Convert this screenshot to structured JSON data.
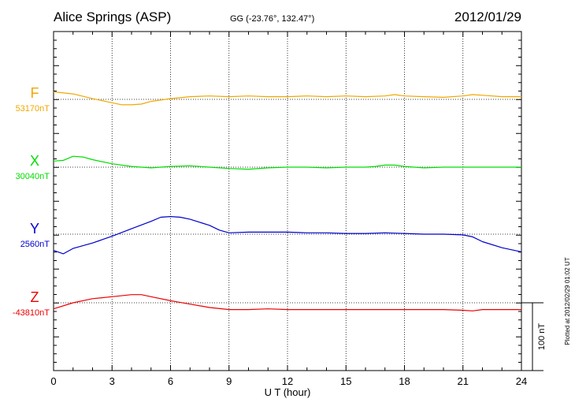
{
  "header": {
    "station": "Alice Springs (ASP)",
    "coords": "GG (-23.76°, 132.47°)",
    "date": "2012/01/29"
  },
  "footer": {
    "plotted": "Plotted at 2012/02/29 01:02 UT"
  },
  "chart_data": {
    "type": "line",
    "xlabel": "U T (hour)",
    "xlim": [
      0,
      24
    ],
    "xticks": [
      "0",
      "3",
      "6",
      "9",
      "12",
      "15",
      "18",
      "21",
      "24"
    ],
    "grid": true,
    "units": "nT",
    "scale_bar": {
      "value": 100,
      "label": "100 nT"
    },
    "series": [
      {
        "name": "F",
        "baseline_label": "53170nT",
        "baseline": 53170,
        "color": "#f0a800",
        "x": [
          0,
          1,
          2,
          3,
          3.5,
          4,
          4.5,
          5,
          6,
          7,
          8,
          9,
          10,
          11,
          12,
          13,
          14,
          15,
          16,
          17,
          17.5,
          18,
          19,
          20,
          21,
          21.5,
          22,
          23,
          24
        ],
        "y": [
          53181,
          53178,
          53171,
          53165,
          53162,
          53162,
          53163,
          53167,
          53171,
          53174,
          53175,
          53174,
          53175,
          53174,
          53174,
          53175,
          53174,
          53175,
          53174,
          53175,
          53177,
          53175,
          53174,
          53173,
          53175,
          53177,
          53176,
          53174,
          53174
        ]
      },
      {
        "name": "X",
        "baseline_label": "30040nT",
        "baseline": 30040,
        "color": "#00dd00",
        "x": [
          0,
          0.5,
          1,
          1.5,
          2,
          3,
          4,
          5,
          6,
          7,
          8,
          9,
          10,
          11,
          12,
          13,
          14,
          15,
          16,
          16.5,
          17,
          17.5,
          18,
          19,
          20,
          21,
          22,
          23,
          24
        ],
        "y": [
          30049,
          30050,
          30056,
          30055,
          30051,
          30045,
          30041,
          30039,
          30041,
          30042,
          30040,
          30038,
          30037,
          30039,
          30040,
          30040,
          30039,
          30040,
          30040,
          30041,
          30043,
          30043,
          30041,
          30039,
          30040,
          30040,
          30040,
          30040,
          30040
        ]
      },
      {
        "name": "Y",
        "baseline_label": "2560nT",
        "baseline": 2560,
        "color": "#0000cc",
        "x": [
          0,
          0.5,
          1,
          2,
          3,
          4,
          5,
          5.5,
          6,
          6.5,
          7,
          8,
          8.5,
          9,
          10,
          11,
          12,
          13,
          14,
          15,
          16,
          17,
          18,
          19,
          20,
          21,
          21.5,
          22,
          23,
          24
        ],
        "y": [
          2536,
          2531,
          2539,
          2547,
          2557,
          2568,
          2579,
          2585,
          2586,
          2585,
          2582,
          2573,
          2566,
          2562,
          2563,
          2563,
          2563,
          2562,
          2562,
          2561,
          2561,
          2562,
          2561,
          2560,
          2560,
          2559,
          2556,
          2549,
          2540,
          2534
        ]
      },
      {
        "name": "Z",
        "baseline_label": "-43810nT",
        "baseline": -43810,
        "color": "#ee0000",
        "x": [
          0,
          1,
          2,
          3,
          4,
          4.5,
          5,
          6,
          7,
          8,
          9,
          10,
          11,
          12,
          13,
          14,
          15,
          16,
          17,
          18,
          19,
          20,
          21,
          21.5,
          22,
          23,
          24
        ],
        "y": [
          -43819,
          -43810,
          -43804,
          -43801,
          -43798,
          -43798,
          -43801,
          -43807,
          -43812,
          -43817,
          -43820,
          -43820,
          -43819,
          -43820,
          -43820,
          -43820,
          -43820,
          -43820,
          -43820,
          -43820,
          -43820,
          -43820,
          -43821,
          -43822,
          -43820,
          -43820,
          -43820
        ]
      }
    ]
  }
}
